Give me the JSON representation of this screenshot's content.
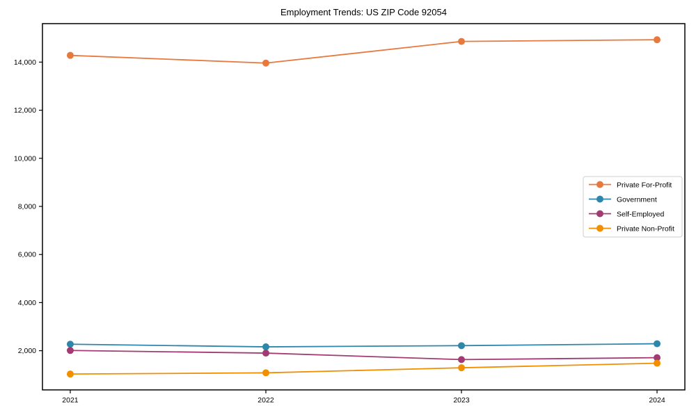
{
  "chart_data": {
    "type": "line",
    "title": "Employment Trends: US ZIP Code 92054",
    "xlabel": "",
    "ylabel": "",
    "x": [
      "2021",
      "2022",
      "2023",
      "2024"
    ],
    "series": [
      {
        "name": "Private For-Profit",
        "color": "#E8793D",
        "values": [
          14280,
          13960,
          14860,
          14930
        ]
      },
      {
        "name": "Government",
        "color": "#2E86AB",
        "values": [
          2270,
          2160,
          2210,
          2290
        ]
      },
      {
        "name": "Self-Employed",
        "color": "#A23B72",
        "values": [
          2010,
          1900,
          1630,
          1710
        ]
      },
      {
        "name": "Private Non-Profit",
        "color": "#F18F01",
        "values": [
          1030,
          1080,
          1290,
          1480
        ]
      }
    ],
    "ylim": [
      370,
      15600
    ],
    "yticks": [
      2000,
      4000,
      6000,
      8000,
      10000,
      12000,
      14000
    ],
    "ytick_labels": [
      "2,000",
      "4,000",
      "6,000",
      "8,000",
      "10,000",
      "12,000",
      "14,000"
    ],
    "grid": false,
    "legend_position": "center-right",
    "axis_color": "#000000",
    "text_color": "#000000",
    "legend_border_color": "#cccccc",
    "background_color": "#ffffff"
  }
}
